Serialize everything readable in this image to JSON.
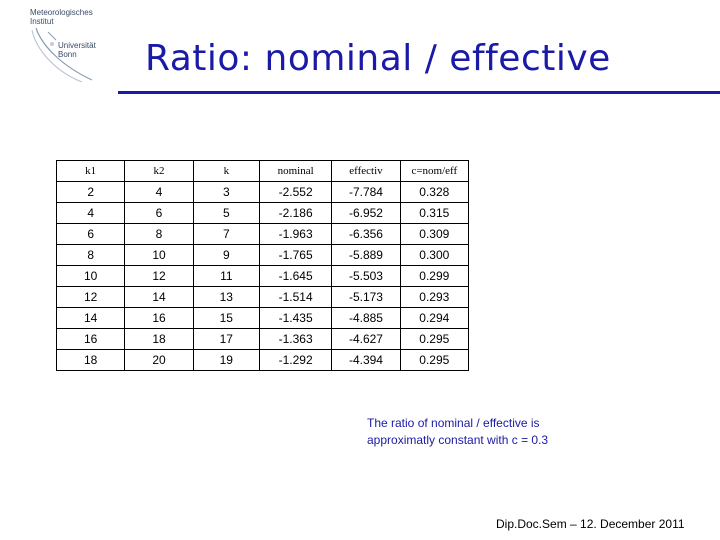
{
  "logo": {
    "line1": "Meteorologisches",
    "line2": "Institut",
    "line3": "Universität",
    "line4": "Bonn"
  },
  "title": "Ratio: nominal / effective",
  "table": {
    "headers": [
      "k1",
      "k2",
      "k",
      "nominal",
      "effectiv",
      "c=nom/eff"
    ],
    "rows": [
      [
        "2",
        "4",
        "3",
        "-2.552",
        "-7.784",
        "0.328"
      ],
      [
        "4",
        "6",
        "5",
        "-2.186",
        "-6.952",
        "0.315"
      ],
      [
        "6",
        "8",
        "7",
        "-1.963",
        "-6.356",
        "0.309"
      ],
      [
        "8",
        "10",
        "9",
        "-1.765",
        "-5.889",
        "0.300"
      ],
      [
        "10",
        "12",
        "11",
        "-1.645",
        "-5.503",
        "0.299"
      ],
      [
        "12",
        "14",
        "13",
        "-1.514",
        "-5.173",
        "0.293"
      ],
      [
        "14",
        "16",
        "15",
        "-1.435",
        "-4.885",
        "0.294"
      ],
      [
        "16",
        "18",
        "17",
        "-1.363",
        "-4.627",
        "0.295"
      ],
      [
        "18",
        "20",
        "19",
        "-1.292",
        "-4.394",
        "0.295"
      ]
    ]
  },
  "note": {
    "line1": "The ratio of nominal / effective is",
    "line2": "approximatly constant with c = 0.3"
  },
  "footer": "Dip.Doc.Sem  –  12. December 2011",
  "colors": {
    "accent": "#1a1aa6",
    "logo_text": "#3a4a66"
  }
}
